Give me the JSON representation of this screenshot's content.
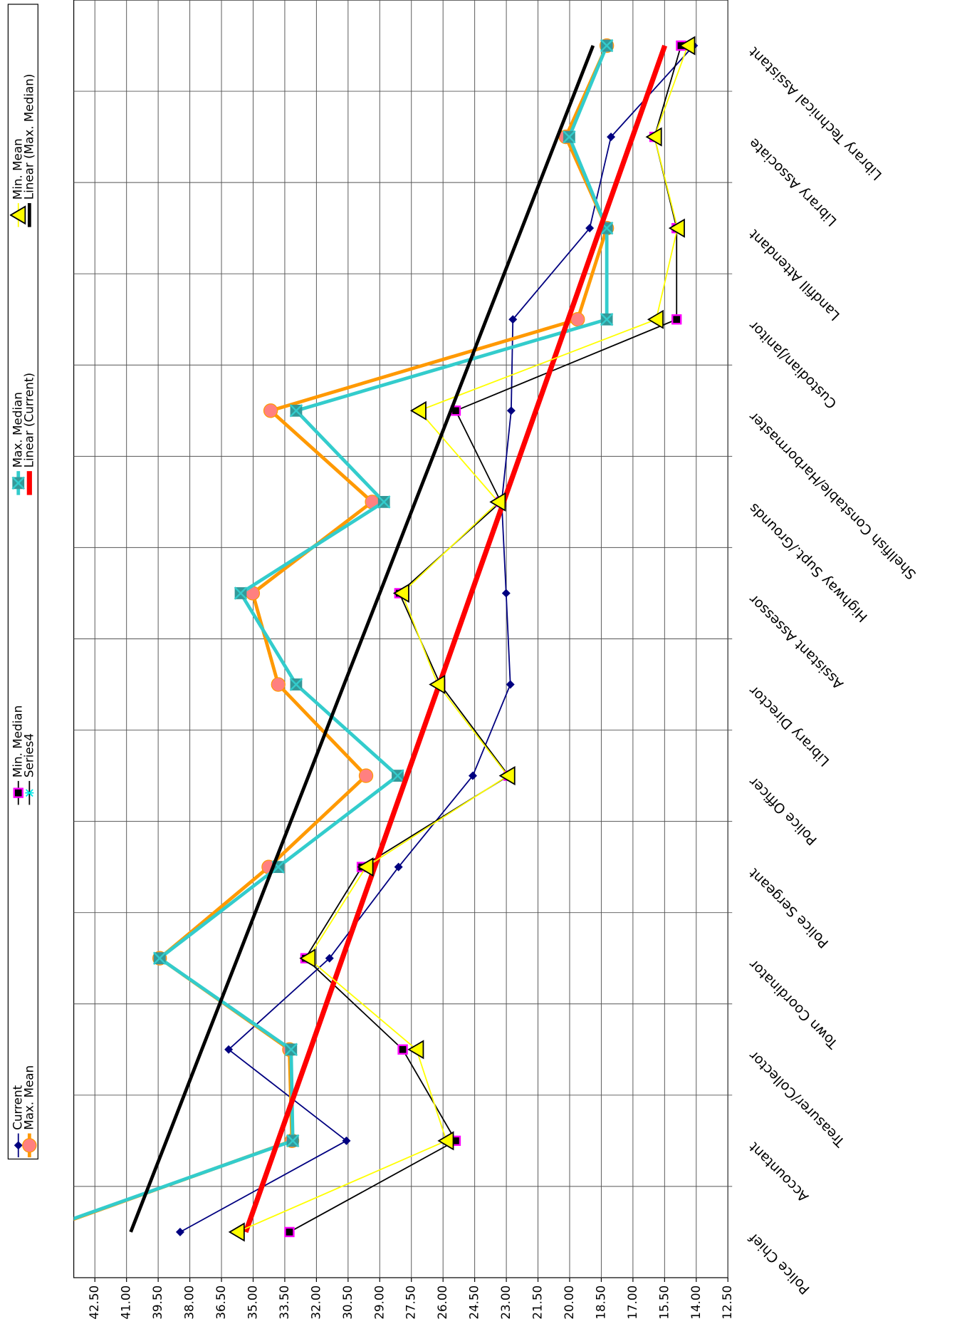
{
  "chart_data": {
    "type": "line",
    "categories": [
      "Police Chief",
      "Accountant",
      "Treasurer/Collector",
      "Town Coordinator",
      "Police Sergeant",
      "Police Officer",
      "Library Director",
      "Assistant Assessor",
      "Highway Supt./Grounds",
      "Shellfish Constable/Harbormaster",
      "Custodian/Janitor",
      "Landfill Attendant",
      "Library Associate",
      "Library Technical Assistant"
    ],
    "ylim": [
      12.5,
      43.5
    ],
    "yticks": [
      {
        "value": 12.5,
        "label": "12.50"
      },
      {
        "value": 14,
        "label": "14.00"
      },
      {
        "value": 15.5,
        "label": "15.50"
      },
      {
        "value": 17,
        "label": "17.00"
      },
      {
        "value": 18.5,
        "label": "18.50"
      },
      {
        "value": 20,
        "label": "20.00"
      },
      {
        "value": 21.5,
        "label": "21.50"
      },
      {
        "value": 23,
        "label": "23.00"
      },
      {
        "value": 24.5,
        "label": "24.50"
      },
      {
        "value": 26,
        "label": "26.00"
      },
      {
        "value": 27.5,
        "label": "27.50"
      },
      {
        "value": 29,
        "label": "29.00"
      },
      {
        "value": 30.5,
        "label": "30.50"
      },
      {
        "value": 32,
        "label": "32.00"
      },
      {
        "value": 33.5,
        "label": "33.50"
      },
      {
        "value": 35,
        "label": "35.00"
      },
      {
        "value": 36.5,
        "label": "36.50"
      },
      {
        "value": 38,
        "label": "38.00"
      },
      {
        "value": 39.5,
        "label": "39.50"
      },
      {
        "value": 41,
        "label": "41.00"
      },
      {
        "value": 42.5,
        "label": "42.50"
      }
    ],
    "grid": true,
    "series": [
      {
        "name": "Current",
        "color": "#000080",
        "marker": "diamond",
        "line_width": 1.5,
        "values": [
          38.46,
          30.58,
          36.16,
          31.38,
          28.11,
          24.59,
          22.81,
          23.01,
          23.22,
          22.77,
          22.69,
          19.05,
          18.04,
          14.12
        ]
      },
      {
        "name": "Max. Mean",
        "color": "#ff9900",
        "marker": "circle",
        "line_width": 4,
        "values": [
          45.2,
          33.16,
          33.28,
          39.43,
          34.26,
          29.65,
          33.81,
          35.02,
          29.36,
          34.17,
          19.62,
          18.24,
          20.18,
          18.24
        ]
      },
      {
        "name": "Min. Median",
        "color": "#000000",
        "marker": "square",
        "line_width": 1.5,
        "values": [
          33.28,
          25.4,
          27.91,
          32.52,
          29.85,
          22.89,
          26.13,
          28.07,
          23.26,
          25.4,
          14.93,
          14.93,
          15.98,
          14.72
        ]
      },
      {
        "name": "Series4",
        "color": "#00e5e5",
        "marker": "asterisk",
        "line_width": 1.5,
        "values": [
          null,
          null,
          null,
          null,
          null,
          null,
          null,
          null,
          null,
          null,
          null,
          null,
          null,
          null
        ]
      },
      {
        "name": "Max. Median",
        "color": "#33cccc",
        "marker": "xsquare",
        "line_width": 4,
        "values": [
          45.3,
          33.12,
          33.2,
          39.43,
          33.81,
          28.15,
          32.96,
          35.59,
          28.8,
          32.96,
          18.24,
          18.24,
          20.02,
          18.24
        ]
      },
      {
        "name": "Linear (Current)",
        "color": "#ff0000",
        "marker": "none",
        "line_width": 6,
        "values": [
          35.35,
          33.82,
          32.29,
          30.77,
          29.24,
          27.71,
          26.18,
          24.66,
          23.13,
          21.6,
          20.07,
          18.55,
          17.02,
          15.49
        ]
      },
      {
        "name": "Min. Mean",
        "color": "#ffff33",
        "marker": "triangle",
        "line_width": 1.5,
        "values": [
          35.75,
          25.84,
          27.26,
          32.39,
          29.65,
          22.93,
          26.25,
          27.95,
          23.38,
          27.14,
          15.9,
          14.89,
          15.98,
          14.4
        ]
      },
      {
        "name": "Linear (Max. Median)",
        "color": "#000000",
        "marker": "none",
        "line_width": 4,
        "values": [
          40.8,
          39.11,
          37.43,
          35.74,
          34.06,
          32.37,
          30.69,
          29.0,
          27.32,
          25.63,
          23.95,
          22.26,
          20.58,
          18.89
        ]
      }
    ],
    "legend": "left"
  }
}
